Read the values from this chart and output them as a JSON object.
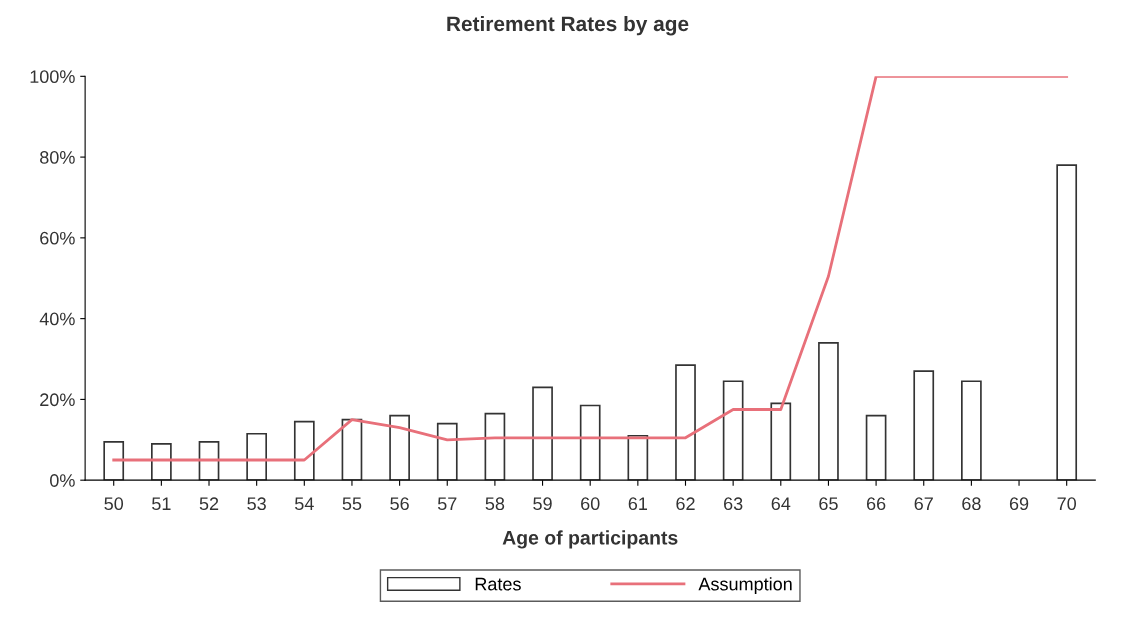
{
  "chart_data": {
    "type": "bar",
    "title": "Retirement Rates by age",
    "xlabel": "Age of participants",
    "categories": [
      "50",
      "51",
      "52",
      "53",
      "54",
      "55",
      "56",
      "57",
      "58",
      "59",
      "60",
      "61",
      "62",
      "63",
      "64",
      "65",
      "66",
      "67",
      "68",
      "69",
      "70"
    ],
    "series": [
      {
        "name": "Rates",
        "color": "#ffffff",
        "values": [
          9.5,
          9,
          9.5,
          11.5,
          14.5,
          15,
          16,
          14,
          16.5,
          23,
          18.5,
          11,
          28.5,
          24.5,
          19,
          34,
          16,
          27,
          24.5,
          null,
          78
        ]
      },
      {
        "name": "Assumption",
        "type": "line",
        "color": "#e8707a",
        "values": [
          5,
          5,
          5,
          5,
          5,
          15,
          13,
          10,
          10.5,
          10.5,
          10.5,
          10.5,
          10.5,
          17.5,
          17.5,
          50.5,
          100,
          100,
          100,
          100,
          100
        ]
      }
    ],
    "ylim": [
      0,
      100
    ],
    "yticks": [
      {
        "value": 0,
        "label": "0%"
      },
      {
        "value": 20,
        "label": "20%"
      },
      {
        "value": 40,
        "label": "40%"
      },
      {
        "value": 60,
        "label": "60%"
      },
      {
        "value": 80,
        "label": "80%"
      },
      {
        "value": 100,
        "label": "100%"
      }
    ],
    "grid": false,
    "legend": "bottom",
    "marker": "none",
    "line_style": "solid"
  }
}
